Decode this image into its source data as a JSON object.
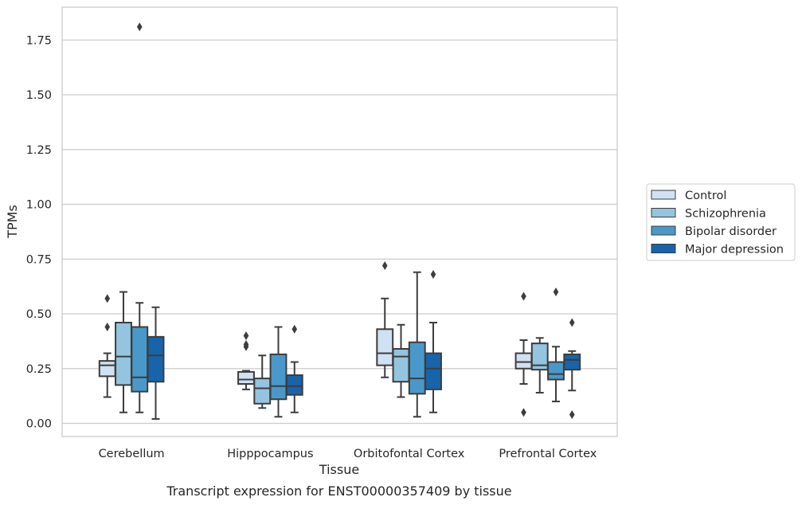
{
  "chart_data": {
    "type": "boxplot",
    "xlabel": "Tissue",
    "ylabel": "TPMs",
    "caption": "Transcript expression for ENST00000357409 by tissue",
    "ylim": [
      -0.06,
      1.9
    ],
    "yticks": [
      "0.00",
      "0.25",
      "0.50",
      "0.75",
      "1.00",
      "1.25",
      "1.50",
      "1.75"
    ],
    "grid": "horizontal",
    "legend_position": "right",
    "categories": [
      "Cerebellum",
      "Hipppocampus",
      "Orbitofontal Cortex",
      "Prefrontal Cortex"
    ],
    "series": [
      {
        "name": "Control",
        "color": "#d0e1f2",
        "boxes": [
          {
            "whislo": 0.12,
            "q1": 0.215,
            "med": 0.265,
            "q3": 0.285,
            "whishi": 0.32,
            "fliers": [
              0.44,
              0.57
            ]
          },
          {
            "whislo": 0.155,
            "q1": 0.18,
            "med": 0.2,
            "q3": 0.235,
            "whishi": 0.24,
            "fliers": [
              0.35,
              0.36,
              0.4
            ]
          },
          {
            "whislo": 0.21,
            "q1": 0.265,
            "med": 0.32,
            "q3": 0.43,
            "whishi": 0.57,
            "fliers": [
              0.72
            ]
          },
          {
            "whislo": 0.18,
            "q1": 0.25,
            "med": 0.28,
            "q3": 0.32,
            "whishi": 0.38,
            "fliers": [
              0.05,
              0.58
            ]
          }
        ]
      },
      {
        "name": "Schizophrenia",
        "color": "#94c4df",
        "boxes": [
          {
            "whislo": 0.05,
            "q1": 0.175,
            "med": 0.305,
            "q3": 0.46,
            "whishi": 0.6,
            "fliers": []
          },
          {
            "whislo": 0.07,
            "q1": 0.09,
            "med": 0.16,
            "q3": 0.205,
            "whishi": 0.31,
            "fliers": []
          },
          {
            "whislo": 0.12,
            "q1": 0.19,
            "med": 0.305,
            "q3": 0.34,
            "whishi": 0.45,
            "fliers": []
          },
          {
            "whislo": 0.14,
            "q1": 0.245,
            "med": 0.265,
            "q3": 0.365,
            "whishi": 0.39,
            "fliers": []
          }
        ]
      },
      {
        "name": "Bipolar disorder",
        "color": "#4a98c9",
        "boxes": [
          {
            "whislo": 0.05,
            "q1": 0.145,
            "med": 0.21,
            "q3": 0.44,
            "whishi": 0.55,
            "fliers": [
              1.81
            ]
          },
          {
            "whislo": 0.03,
            "q1": 0.11,
            "med": 0.17,
            "q3": 0.315,
            "whishi": 0.44,
            "fliers": []
          },
          {
            "whislo": 0.03,
            "q1": 0.135,
            "med": 0.205,
            "q3": 0.37,
            "whishi": 0.69,
            "fliers": []
          },
          {
            "whislo": 0.1,
            "q1": 0.2,
            "med": 0.225,
            "q3": 0.28,
            "whishi": 0.35,
            "fliers": [
              0.6
            ]
          }
        ]
      },
      {
        "name": "Major depression",
        "color": "#1764ab",
        "boxes": [
          {
            "whislo": 0.02,
            "q1": 0.19,
            "med": 0.31,
            "q3": 0.395,
            "whishi": 0.53,
            "fliers": []
          },
          {
            "whislo": 0.05,
            "q1": 0.13,
            "med": 0.17,
            "q3": 0.22,
            "whishi": 0.28,
            "fliers": [
              0.43
            ]
          },
          {
            "whislo": 0.05,
            "q1": 0.155,
            "med": 0.25,
            "q3": 0.32,
            "whishi": 0.46,
            "fliers": [
              0.68
            ]
          },
          {
            "whislo": 0.15,
            "q1": 0.245,
            "med": 0.29,
            "q3": 0.315,
            "whishi": 0.33,
            "fliers": [
              0.04,
              0.46
            ]
          }
        ]
      }
    ]
  }
}
